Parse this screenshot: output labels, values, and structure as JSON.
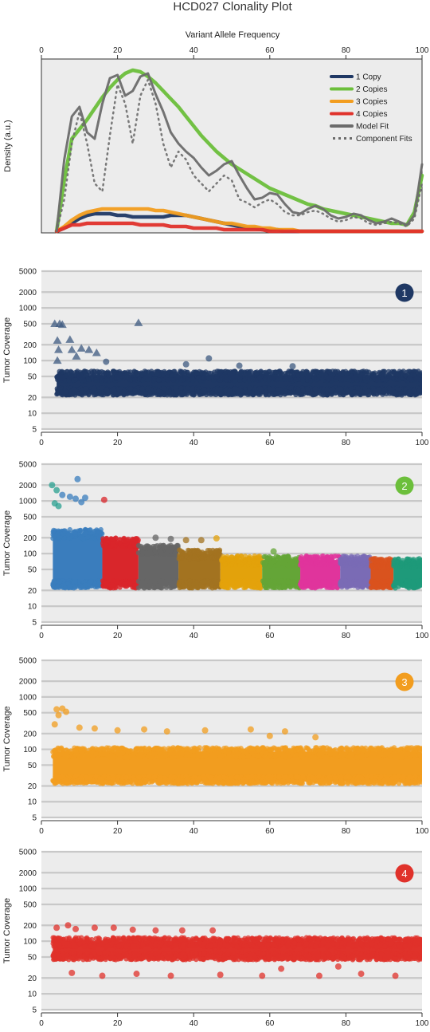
{
  "figure": {
    "title": "HCD027 Clonality Plot",
    "top_axis_label": "Variant Allele Frequency"
  },
  "colors": {
    "copy1": "#1f3864",
    "copy2": "#6cbf3b",
    "copy3": "#f29d1f",
    "copy4": "#e0322b",
    "model": "#6b6b6b",
    "panel_bg": "#ececec",
    "grid": "#c8c8c8"
  },
  "chart_data": [
    {
      "type": "line",
      "title": "HCD027 Clonality Plot",
      "xlabel": "Variant Allele Frequency",
      "ylabel": "Density (a.u.)",
      "xlim": [
        0,
        100
      ],
      "xticks": [
        0,
        20,
        40,
        60,
        80,
        100
      ],
      "grid": false,
      "legend_position": "top-right",
      "x": [
        4,
        6,
        8,
        10,
        12,
        14,
        16,
        18,
        20,
        22,
        24,
        26,
        28,
        30,
        32,
        34,
        36,
        38,
        40,
        42,
        44,
        46,
        48,
        50,
        52,
        54,
        56,
        58,
        60,
        62,
        64,
        66,
        68,
        70,
        72,
        74,
        76,
        78,
        80,
        82,
        84,
        86,
        88,
        90,
        92,
        94,
        96,
        98,
        100
      ],
      "series": [
        {
          "name": "1 Copy",
          "color": "#1f3864",
          "values": [
            0.0,
            0.02,
            0.05,
            0.08,
            0.1,
            0.11,
            0.11,
            0.11,
            0.1,
            0.1,
            0.09,
            0.09,
            0.09,
            0.09,
            0.09,
            0.1,
            0.1,
            0.1,
            0.09,
            0.08,
            0.07,
            0.06,
            0.05,
            0.04,
            0.03,
            0.02,
            0.02,
            0.01,
            0.01,
            0.01,
            0.0,
            0.0,
            0.0,
            0.0,
            0.0,
            0.0,
            0.0,
            0.0,
            0.0,
            0.0,
            0.0,
            0.0,
            0.0,
            0.0,
            0.0,
            0.0,
            0.0,
            0.0,
            0.0
          ]
        },
        {
          "name": "2 Copies",
          "color": "#6cbf3b",
          "values": [
            0.0,
            0.32,
            0.58,
            0.64,
            0.7,
            0.77,
            0.84,
            0.9,
            0.95,
            0.99,
            1.01,
            1.0,
            0.97,
            0.93,
            0.88,
            0.83,
            0.78,
            0.72,
            0.66,
            0.6,
            0.55,
            0.5,
            0.46,
            0.42,
            0.39,
            0.36,
            0.33,
            0.3,
            0.27,
            0.25,
            0.23,
            0.21,
            0.19,
            0.17,
            0.16,
            0.14,
            0.13,
            0.12,
            0.11,
            0.1,
            0.09,
            0.08,
            0.07,
            0.06,
            0.05,
            0.05,
            0.04,
            0.12,
            0.35
          ]
        },
        {
          "name": "3 Copies",
          "color": "#f29d1f",
          "values": [
            0.0,
            0.03,
            0.07,
            0.1,
            0.12,
            0.13,
            0.14,
            0.14,
            0.14,
            0.14,
            0.14,
            0.14,
            0.14,
            0.13,
            0.13,
            0.12,
            0.11,
            0.1,
            0.09,
            0.08,
            0.07,
            0.06,
            0.05,
            0.05,
            0.04,
            0.03,
            0.03,
            0.02,
            0.02,
            0.01,
            0.01,
            0.01,
            0.0,
            0.0,
            0.0,
            0.0,
            0.0,
            0.0,
            0.0,
            0.0,
            0.0,
            0.0,
            0.0,
            0.0,
            0.0,
            0.0,
            0.0,
            0.0,
            0.0
          ]
        },
        {
          "name": "4 Copies",
          "color": "#e0322b",
          "values": [
            0.0,
            0.02,
            0.04,
            0.04,
            0.05,
            0.05,
            0.05,
            0.05,
            0.05,
            0.05,
            0.05,
            0.04,
            0.04,
            0.04,
            0.04,
            0.03,
            0.03,
            0.03,
            0.02,
            0.02,
            0.02,
            0.02,
            0.01,
            0.01,
            0.01,
            0.01,
            0.01,
            0.01,
            0.0,
            0.0,
            0.0,
            0.0,
            0.0,
            0.0,
            0.0,
            0.0,
            0.0,
            0.0,
            0.0,
            0.0,
            0.0,
            0.0,
            0.0,
            0.0,
            0.0,
            0.0,
            0.0,
            0.0,
            0.0
          ]
        },
        {
          "name": "Model Fit",
          "color": "#6b6b6b",
          "values": [
            0.0,
            0.45,
            0.72,
            0.78,
            0.62,
            0.58,
            0.8,
            0.96,
            0.98,
            0.85,
            0.88,
            0.97,
            0.99,
            0.86,
            0.75,
            0.62,
            0.55,
            0.5,
            0.46,
            0.4,
            0.35,
            0.38,
            0.42,
            0.44,
            0.35,
            0.27,
            0.2,
            0.21,
            0.24,
            0.23,
            0.17,
            0.12,
            0.11,
            0.14,
            0.16,
            0.14,
            0.1,
            0.08,
            0.09,
            0.11,
            0.1,
            0.07,
            0.05,
            0.06,
            0.08,
            0.06,
            0.04,
            0.1,
            0.42
          ]
        },
        {
          "name": "Component Fits",
          "color": "#6b6b6b",
          "style": "dotted",
          "values": [
            0.0,
            0.2,
            0.55,
            0.75,
            0.55,
            0.3,
            0.25,
            0.6,
            0.92,
            0.8,
            0.55,
            0.85,
            0.95,
            0.8,
            0.55,
            0.4,
            0.5,
            0.45,
            0.35,
            0.3,
            0.25,
            0.3,
            0.35,
            0.32,
            0.2,
            0.18,
            0.15,
            0.18,
            0.2,
            0.17,
            0.12,
            0.1,
            0.1,
            0.12,
            0.13,
            0.11,
            0.08,
            0.06,
            0.07,
            0.09,
            0.08,
            0.05,
            0.04,
            0.05,
            0.06,
            0.05,
            0.03,
            0.08,
            0.3
          ]
        }
      ]
    },
    {
      "type": "scatter",
      "panel_label": "1",
      "badge_color": "#1f3864",
      "ylabel": "Tumor Coverage",
      "y_scale": "log",
      "ylim": [
        5,
        5000
      ],
      "yticks": [
        5,
        10,
        20,
        50,
        100,
        200,
        500,
        1000,
        2000,
        5000
      ],
      "xlim": [
        0,
        100
      ],
      "xticks": [
        0,
        20,
        40,
        60,
        80,
        100
      ],
      "grid": true,
      "bands": [
        {
          "x_range": [
            4,
            100
          ],
          "y_range": [
            20,
            70
          ],
          "color": "#1f3864"
        }
      ],
      "outliers": [
        {
          "x": 3.5,
          "y": 500,
          "marker": "triangle"
        },
        {
          "x": 4.8,
          "y": 500,
          "marker": "triangle"
        },
        {
          "x": 5.5,
          "y": 480,
          "marker": "triangle"
        },
        {
          "x": 25.5,
          "y": 520,
          "marker": "triangle"
        },
        {
          "x": 4.2,
          "y": 240,
          "marker": "triangle"
        },
        {
          "x": 7.5,
          "y": 250,
          "marker": "triangle"
        },
        {
          "x": 8.0,
          "y": 160,
          "marker": "triangle"
        },
        {
          "x": 4.5,
          "y": 160,
          "marker": "triangle"
        },
        {
          "x": 10.5,
          "y": 170,
          "marker": "triangle"
        },
        {
          "x": 12.5,
          "y": 160,
          "marker": "triangle"
        },
        {
          "x": 14.5,
          "y": 140,
          "marker": "triangle"
        },
        {
          "x": 9.2,
          "y": 120,
          "marker": "triangle"
        },
        {
          "x": 4.2,
          "y": 100,
          "marker": "triangle"
        },
        {
          "x": 44,
          "y": 110,
          "marker": "circle"
        },
        {
          "x": 17,
          "y": 95,
          "marker": "circle"
        },
        {
          "x": 38,
          "y": 85,
          "marker": "circle"
        },
        {
          "x": 52,
          "y": 80,
          "marker": "circle"
        },
        {
          "x": 66,
          "y": 78,
          "marker": "circle"
        }
      ]
    },
    {
      "type": "scatter",
      "panel_label": "2",
      "badge_color": "#6cbf3b",
      "ylabel": "Tumor Coverage",
      "y_scale": "log",
      "ylim": [
        5,
        5000
      ],
      "yticks": [
        5,
        10,
        20,
        50,
        100,
        200,
        500,
        1000,
        2000,
        5000
      ],
      "xlim": [
        0,
        100
      ],
      "xticks": [
        0,
        20,
        40,
        60,
        80,
        100
      ],
      "grid": true,
      "bands": [
        {
          "x_range": [
            3,
            16
          ],
          "y_range": [
            20,
            320
          ],
          "color": "#3a7dbd"
        },
        {
          "x_range": [
            16,
            25.5
          ],
          "y_range": [
            20,
            220
          ],
          "color": "#d9262b"
        },
        {
          "x_range": [
            25.5,
            36
          ],
          "y_range": [
            20,
            160
          ],
          "color": "#666666"
        },
        {
          "x_range": [
            36,
            47
          ],
          "y_range": [
            20,
            130
          ],
          "color": "#a37320"
        },
        {
          "x_range": [
            47,
            58
          ],
          "y_range": [
            20,
            100
          ],
          "color": "#e3a20b"
        },
        {
          "x_range": [
            58,
            68
          ],
          "y_range": [
            20,
            100
          ],
          "color": "#64a537"
        },
        {
          "x_range": [
            68,
            78.5
          ],
          "y_range": [
            20,
            100
          ],
          "color": "#e0349c"
        },
        {
          "x_range": [
            78.5,
            86.5
          ],
          "y_range": [
            20,
            100
          ],
          "color": "#7a6bb5"
        },
        {
          "x_range": [
            86.5,
            92.5
          ],
          "y_range": [
            20,
            90
          ],
          "color": "#d9531e"
        },
        {
          "x_range": [
            92.5,
            100
          ],
          "y_range": [
            20,
            90
          ],
          "color": "#1e9a7a"
        }
      ],
      "outliers": [
        {
          "x": 9.5,
          "y": 2600,
          "marker": "circle",
          "color": "#3a7dbd"
        },
        {
          "x": 2.8,
          "y": 2000,
          "marker": "circle",
          "color": "#2aa090"
        },
        {
          "x": 4.0,
          "y": 1600,
          "marker": "circle",
          "color": "#2aa090"
        },
        {
          "x": 5.5,
          "y": 1300,
          "marker": "circle",
          "color": "#3a7dbd"
        },
        {
          "x": 7.5,
          "y": 1200,
          "marker": "circle",
          "color": "#3a7dbd"
        },
        {
          "x": 9.0,
          "y": 1100,
          "marker": "circle",
          "color": "#3a7dbd"
        },
        {
          "x": 11.5,
          "y": 1150,
          "marker": "circle",
          "color": "#3a7dbd"
        },
        {
          "x": 10.5,
          "y": 950,
          "marker": "circle",
          "color": "#3a7dbd"
        },
        {
          "x": 3.5,
          "y": 900,
          "marker": "circle",
          "color": "#2aa090"
        },
        {
          "x": 4.5,
          "y": 800,
          "marker": "circle",
          "color": "#2aa090"
        },
        {
          "x": 16.5,
          "y": 1050,
          "marker": "circle",
          "color": "#d9262b"
        },
        {
          "x": 30,
          "y": 200,
          "marker": "circle",
          "color": "#666666"
        },
        {
          "x": 34,
          "y": 190,
          "marker": "circle",
          "color": "#666666"
        },
        {
          "x": 38,
          "y": 180,
          "marker": "circle",
          "color": "#a37320"
        },
        {
          "x": 42,
          "y": 180,
          "marker": "circle",
          "color": "#a37320"
        },
        {
          "x": 46,
          "y": 195,
          "marker": "circle",
          "color": "#e3a20b"
        },
        {
          "x": 61,
          "y": 110,
          "marker": "circle",
          "color": "#64a537"
        }
      ]
    },
    {
      "type": "scatter",
      "panel_label": "3",
      "badge_color": "#f29d1f",
      "ylabel": "Tumor Coverage",
      "y_scale": "log",
      "ylim": [
        5,
        5000
      ],
      "yticks": [
        5,
        10,
        20,
        50,
        100,
        200,
        500,
        1000,
        2000,
        5000
      ],
      "xlim": [
        0,
        100
      ],
      "xticks": [
        0,
        20,
        40,
        60,
        80,
        100
      ],
      "grid": true,
      "bands": [
        {
          "x_range": [
            3,
            100
          ],
          "y_range": [
            20,
            120
          ],
          "color": "#f29d1f"
        }
      ],
      "outliers": [
        {
          "x": 4.0,
          "y": 580,
          "marker": "circle"
        },
        {
          "x": 5.5,
          "y": 600,
          "marker": "circle"
        },
        {
          "x": 6.5,
          "y": 520,
          "marker": "circle"
        },
        {
          "x": 4.5,
          "y": 450,
          "marker": "circle"
        },
        {
          "x": 3.5,
          "y": 300,
          "marker": "circle"
        },
        {
          "x": 10,
          "y": 260,
          "marker": "circle"
        },
        {
          "x": 14,
          "y": 250,
          "marker": "circle"
        },
        {
          "x": 20,
          "y": 230,
          "marker": "circle"
        },
        {
          "x": 27,
          "y": 240,
          "marker": "circle"
        },
        {
          "x": 33,
          "y": 220,
          "marker": "circle"
        },
        {
          "x": 43,
          "y": 230,
          "marker": "circle"
        },
        {
          "x": 55,
          "y": 240,
          "marker": "circle"
        },
        {
          "x": 64,
          "y": 220,
          "marker": "circle"
        },
        {
          "x": 60,
          "y": 180,
          "marker": "circle"
        },
        {
          "x": 72,
          "y": 170,
          "marker": "circle"
        }
      ]
    },
    {
      "type": "scatter",
      "panel_label": "4",
      "badge_color": "#e0322b",
      "ylabel": "Tumor Coverage",
      "y_scale": "log",
      "ylim": [
        5,
        5000
      ],
      "yticks": [
        5,
        10,
        20,
        50,
        100,
        200,
        500,
        1000,
        2000,
        5000
      ],
      "xlim": [
        0,
        100
      ],
      "xticks": [
        0,
        20,
        40,
        60,
        80,
        100
      ],
      "grid": true,
      "bands": [
        {
          "x_range": [
            3,
            100
          ],
          "y_range": [
            40,
            130
          ],
          "color": "#e0322b"
        }
      ],
      "outliers": [
        {
          "x": 7,
          "y": 200,
          "marker": "circle"
        },
        {
          "x": 4,
          "y": 180,
          "marker": "circle"
        },
        {
          "x": 9,
          "y": 170,
          "marker": "circle"
        },
        {
          "x": 14,
          "y": 180,
          "marker": "circle"
        },
        {
          "x": 19,
          "y": 180,
          "marker": "circle"
        },
        {
          "x": 24,
          "y": 165,
          "marker": "circle"
        },
        {
          "x": 30,
          "y": 160,
          "marker": "circle"
        },
        {
          "x": 37,
          "y": 160,
          "marker": "circle"
        },
        {
          "x": 45,
          "y": 160,
          "marker": "circle"
        },
        {
          "x": 8,
          "y": 25,
          "marker": "circle"
        },
        {
          "x": 16,
          "y": 22,
          "marker": "circle"
        },
        {
          "x": 25,
          "y": 24,
          "marker": "circle"
        },
        {
          "x": 34,
          "y": 22,
          "marker": "circle"
        },
        {
          "x": 47,
          "y": 23,
          "marker": "circle"
        },
        {
          "x": 58,
          "y": 22,
          "marker": "circle"
        },
        {
          "x": 73,
          "y": 22,
          "marker": "circle"
        },
        {
          "x": 84,
          "y": 24,
          "marker": "circle"
        },
        {
          "x": 93,
          "y": 22,
          "marker": "circle"
        },
        {
          "x": 63,
          "y": 30,
          "marker": "circle"
        },
        {
          "x": 78,
          "y": 33,
          "marker": "circle"
        }
      ]
    }
  ]
}
